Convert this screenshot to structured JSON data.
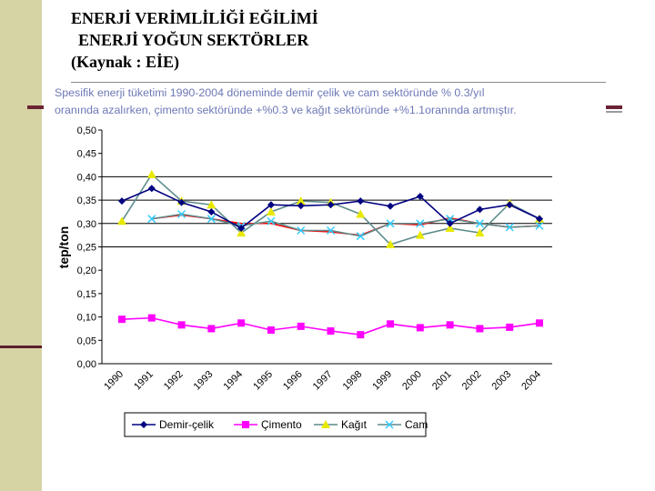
{
  "slide": {
    "title_line1": "ENERJİ VERİMLİLİĞİ EĞİLİMİ",
    "title_line2": "ENERJİ YOĞUN SEKTÖRLER",
    "title_line3": "(Kaynak : EİE)"
  },
  "caption": {
    "line1": "Spesifik enerji tüketimi 1990-2004 döneminde demir çelik ve cam sektöründe % 0.3/yıl",
    "line2": "oranında azalırken, çimento sektöründe +%0.3 ve kağıt sektöründe +%1.1oranında artmıştır."
  },
  "chart_data": {
    "type": "line",
    "title": "",
    "xlabel": "",
    "ylabel": "tep/ton",
    "ylim": [
      0,
      0.5
    ],
    "y_ticks": [
      0,
      0.05,
      0.1,
      0.15,
      0.2,
      0.25,
      0.3,
      0.35,
      0.4,
      0.45,
      0.5
    ],
    "y_tick_labels": [
      "0,00",
      "0,05",
      "0,10",
      "0,15",
      "0,20",
      "0,25",
      "0,30",
      "0,35",
      "0,40",
      "0,45",
      "0,50"
    ],
    "gridlines": [
      0.25,
      0.3,
      0.35,
      0.4
    ],
    "categories": [
      "1990",
      "1991",
      "1992",
      "1993",
      "1994",
      "1995",
      "1996",
      "1997",
      "1998",
      "1999",
      "2000",
      "2001",
      "2002",
      "2003",
      "2004"
    ],
    "series": [
      {
        "name": "Demir-çelik",
        "color": "#000080",
        "marker": "diamond",
        "values": [
          0.348,
          0.375,
          0.345,
          0.325,
          0.29,
          0.34,
          0.338,
          0.34,
          0.348,
          0.337,
          0.358,
          0.3,
          0.33,
          0.34,
          0.31
        ]
      },
      {
        "name": "Çimento",
        "color": "#ff00ff",
        "marker": "square",
        "values": [
          0.095,
          0.098,
          0.083,
          0.075,
          0.087,
          0.072,
          0.08,
          0.07,
          0.062,
          0.085,
          0.077,
          0.083,
          0.075,
          0.078,
          0.087
        ]
      },
      {
        "name": "Kağıt",
        "color": "#e8e800",
        "marker": "triangle",
        "values": [
          0.305,
          0.405,
          0.348,
          0.34,
          0.28,
          0.325,
          0.348,
          0.345,
          0.32,
          0.255,
          0.275,
          0.29,
          0.28,
          0.343,
          0.31
        ]
      },
      {
        "name": "Cam",
        "color": "#33ccff",
        "marker": "x",
        "values": [
          null,
          0.31,
          0.32,
          0.31,
          0.295,
          0.305,
          0.285,
          0.285,
          0.273,
          0.3,
          0.3,
          0.31,
          0.3,
          0.292,
          0.295
        ]
      }
    ],
    "trend_line": {
      "color": "#ff0000",
      "values": [
        null,
        0.31,
        0.318,
        0.31,
        0.3,
        0.3,
        0.285,
        0.282,
        0.275,
        0.3,
        0.297,
        0.312,
        0.3,
        0.292,
        0.295
      ]
    },
    "legend_position": "bottom"
  },
  "colors": {
    "accent": "#6b2433",
    "caption": "#6d78b6",
    "grid": "#000000"
  }
}
